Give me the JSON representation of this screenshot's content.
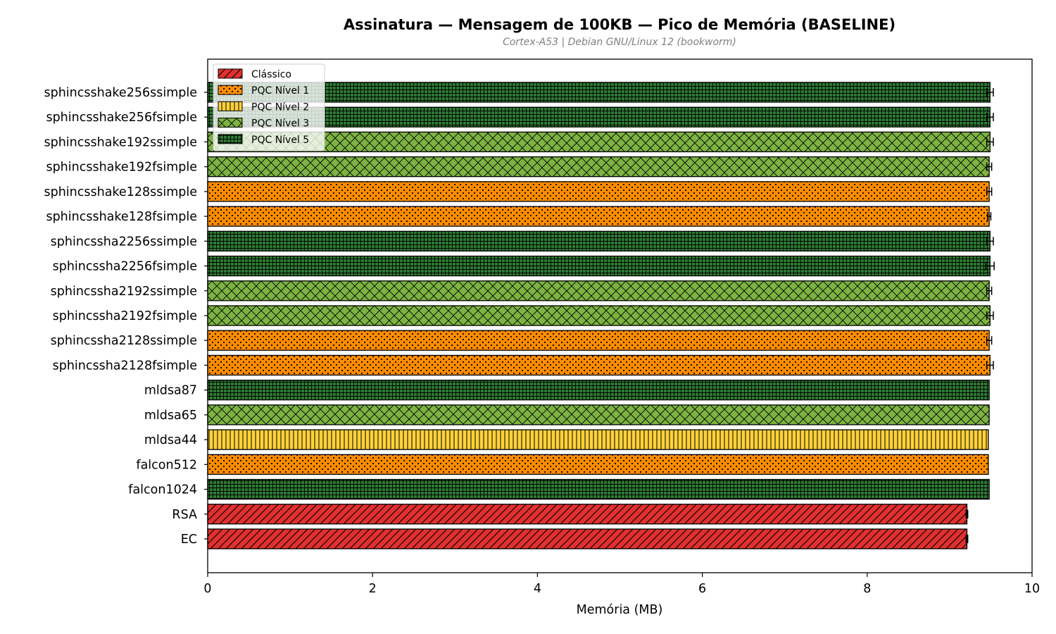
{
  "chart_data": {
    "type": "bar",
    "orientation": "horizontal",
    "title": "Assinatura — Mensagem de 100KB — Pico de Memória (BASELINE)",
    "subtitle": "Cortex-A53 | Debian GNU/Linux 12 (bookworm)",
    "xlabel": "Memória (MB)",
    "ylabel": "",
    "xlim": [
      0,
      10
    ],
    "xticks": [
      0,
      2,
      4,
      6,
      8,
      10
    ],
    "grid": false,
    "legend_position": "top-left",
    "levels": [
      {
        "name": "Clássico",
        "color": "#e03030",
        "hatch": "diagonal"
      },
      {
        "name": "PQC Nível 1",
        "color": "#ff8c00",
        "hatch": "dots"
      },
      {
        "name": "PQC Nível 2",
        "color": "#ffd23a",
        "hatch": "vertical"
      },
      {
        "name": "PQC Nível 3",
        "color": "#7cb342",
        "hatch": "crosshatch"
      },
      {
        "name": "PQC Nível 5",
        "color": "#2e7d32",
        "hatch": "grid"
      }
    ],
    "bars": [
      {
        "label": "sphincsshake256ssimple",
        "value": 9.49,
        "error": 0.04,
        "level": 4
      },
      {
        "label": "sphincsshake256fsimple",
        "value": 9.49,
        "error": 0.04,
        "level": 4
      },
      {
        "label": "sphincsshake192ssimple",
        "value": 9.49,
        "error": 0.04,
        "level": 3
      },
      {
        "label": "sphincsshake192fsimple",
        "value": 9.48,
        "error": 0.03,
        "level": 3
      },
      {
        "label": "sphincsshake128ssimple",
        "value": 9.48,
        "error": 0.03,
        "level": 1
      },
      {
        "label": "sphincsshake128fsimple",
        "value": 9.48,
        "error": 0.02,
        "level": 1
      },
      {
        "label": "sphincssha2256ssimple",
        "value": 9.49,
        "error": 0.04,
        "level": 4
      },
      {
        "label": "sphincssha2256fsimple",
        "value": 9.49,
        "error": 0.05,
        "level": 4
      },
      {
        "label": "sphincssha2192ssimple",
        "value": 9.48,
        "error": 0.03,
        "level": 3
      },
      {
        "label": "sphincssha2192fsimple",
        "value": 9.49,
        "error": 0.04,
        "level": 3
      },
      {
        "label": "sphincssha2128ssimple",
        "value": 9.48,
        "error": 0.03,
        "level": 1
      },
      {
        "label": "sphincssha2128fsimple",
        "value": 9.49,
        "error": 0.04,
        "level": 1
      },
      {
        "label": "mldsa87",
        "value": 9.48,
        "error": 0.0,
        "level": 4
      },
      {
        "label": "mldsa65",
        "value": 9.48,
        "error": 0.0,
        "level": 3
      },
      {
        "label": "mldsa44",
        "value": 9.47,
        "error": 0.0,
        "level": 2
      },
      {
        "label": "falcon512",
        "value": 9.47,
        "error": 0.0,
        "level": 1
      },
      {
        "label": "falcon1024",
        "value": 9.48,
        "error": 0.0,
        "level": 4
      },
      {
        "label": "RSA",
        "value": 9.21,
        "error": 0.01,
        "level": 0
      },
      {
        "label": "EC",
        "value": 9.21,
        "error": 0.01,
        "level": 0
      }
    ]
  }
}
